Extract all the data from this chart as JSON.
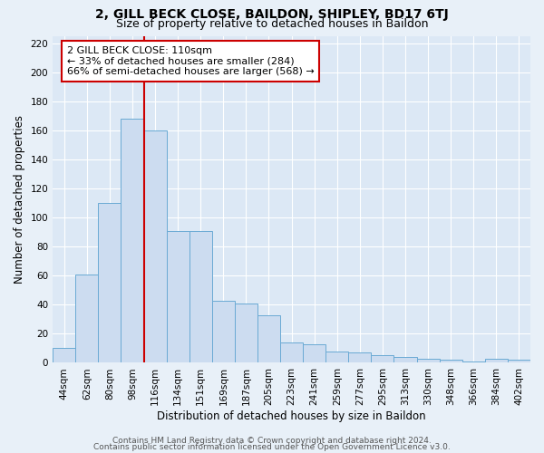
{
  "title": "2, GILL BECK CLOSE, BAILDON, SHIPLEY, BD17 6TJ",
  "subtitle": "Size of property relative to detached houses in Baildon",
  "xlabel": "Distribution of detached houses by size in Baildon",
  "ylabel": "Number of detached properties",
  "bar_labels": [
    "44sqm",
    "62sqm",
    "80sqm",
    "98sqm",
    "116sqm",
    "134sqm",
    "151sqm",
    "169sqm",
    "187sqm",
    "205sqm",
    "223sqm",
    "241sqm",
    "259sqm",
    "277sqm",
    "295sqm",
    "313sqm",
    "330sqm",
    "348sqm",
    "366sqm",
    "384sqm",
    "402sqm"
  ],
  "bar_values": [
    10,
    61,
    110,
    168,
    160,
    91,
    91,
    43,
    41,
    33,
    14,
    13,
    8,
    7,
    5,
    4,
    3,
    2,
    1,
    3,
    2
  ],
  "bar_color": "#ccdcf0",
  "bar_edge_color": "#6aaad4",
  "vline_x_index": 3.5,
  "vline_color": "#cc0000",
  "annotation_text": "2 GILL BECK CLOSE: 110sqm\n← 33% of detached houses are smaller (284)\n66% of semi-detached houses are larger (568) →",
  "annotation_box_color": "#ffffff",
  "annotation_box_edge_color": "#cc0000",
  "ylim": [
    0,
    225
  ],
  "yticks": [
    0,
    20,
    40,
    60,
    80,
    100,
    120,
    140,
    160,
    180,
    200,
    220
  ],
  "footer1": "Contains HM Land Registry data © Crown copyright and database right 2024.",
  "footer2": "Contains public sector information licensed under the Open Government Licence v3.0.",
  "background_color": "#e8f0f8",
  "plot_bg_color": "#dce8f5",
  "title_fontsize": 10,
  "subtitle_fontsize": 9,
  "axis_label_fontsize": 8.5,
  "tick_fontsize": 7.5,
  "footer_fontsize": 6.5,
  "annotation_fontsize": 8
}
